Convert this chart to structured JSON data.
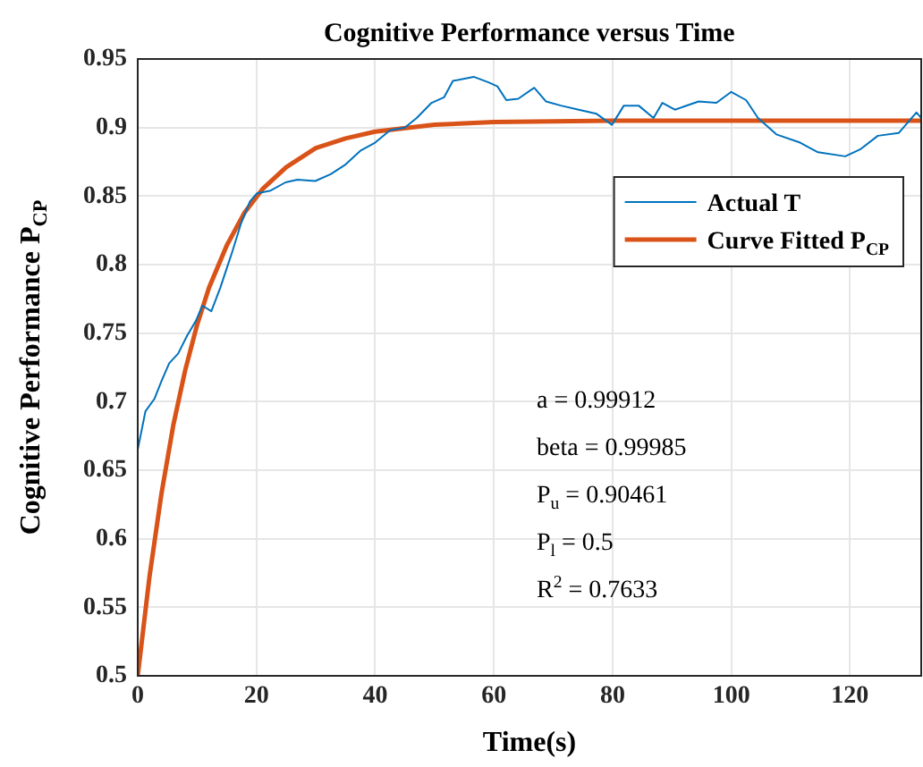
{
  "chart_data": {
    "type": "line",
    "title": "Cognitive Performance versus Time",
    "xlabel": "Time(s)",
    "ylabel": "Cognitive Performance P$_{CP}$",
    "xlim": [
      0,
      132
    ],
    "xticks": [
      0,
      20,
      40,
      60,
      80,
      100,
      120
    ],
    "ylim": [
      0.5,
      0.95
    ],
    "yticks": [
      0.5,
      0.55,
      0.6,
      0.65,
      0.7,
      0.75,
      0.8,
      0.85,
      0.9,
      0.95
    ],
    "grid": true,
    "legend": "top right",
    "marker": "none",
    "line_style": "solid",
    "series": [
      {
        "name": "Actual T",
        "color": "#0072bd",
        "x": [
          0,
          1.3,
          2.8,
          4,
          5.3,
          6.8,
          8.3,
          9.8,
          10.9,
          12.4,
          13.9,
          15.9,
          17.4,
          18.9,
          20.1,
          22.4,
          24.9,
          26.9,
          29.9,
          32.5,
          35,
          37.5,
          40,
          42.5,
          45,
          47,
          49.5,
          51.6,
          53.1,
          56.6,
          59.1,
          60.6,
          62.1,
          64.1,
          66.8,
          68.8,
          71.3,
          74.3,
          77.3,
          79.9,
          81.9,
          84.4,
          86.9,
          88.4,
          90.5,
          94.5,
          97.5,
          100,
          102.5,
          104.5,
          107.6,
          111.6,
          114.6,
          119.2,
          121.7,
          124.7,
          128.2,
          131.2,
          132
        ],
        "values": [
          0.665,
          0.693,
          0.702,
          0.715,
          0.728,
          0.735,
          0.748,
          0.759,
          0.77,
          0.766,
          0.783,
          0.809,
          0.83,
          0.846,
          0.852,
          0.854,
          0.86,
          0.862,
          0.861,
          0.866,
          0.873,
          0.883,
          0.889,
          0.898,
          0.9,
          0.907,
          0.918,
          0.922,
          0.934,
          0.937,
          0.933,
          0.93,
          0.92,
          0.921,
          0.929,
          0.919,
          0.916,
          0.913,
          0.91,
          0.902,
          0.916,
          0.916,
          0.907,
          0.918,
          0.913,
          0.919,
          0.918,
          0.926,
          0.92,
          0.907,
          0.895,
          0.889,
          0.882,
          0.879,
          0.884,
          0.894,
          0.896,
          0.911,
          0.907
        ]
      },
      {
        "name": "Curve Fitted P$_{CP}$",
        "color": "#d95319",
        "x": [
          0,
          2,
          4,
          6,
          8,
          10,
          12,
          15,
          18,
          21,
          25,
          30,
          35,
          40,
          50,
          60,
          80,
          100,
          132
        ],
        "values": [
          0.5,
          0.573,
          0.633,
          0.683,
          0.723,
          0.756,
          0.783,
          0.814,
          0.838,
          0.855,
          0.871,
          0.885,
          0.892,
          0.897,
          0.902,
          0.904,
          0.905,
          0.905,
          0.905
        ]
      }
    ],
    "annotations": [
      "a = 0.99912",
      "beta = 0.99985",
      "P$_{u}$ = 0.90461",
      "P$_{l}$ = 0.5",
      "R$^{2}$ = 0.7633"
    ]
  }
}
